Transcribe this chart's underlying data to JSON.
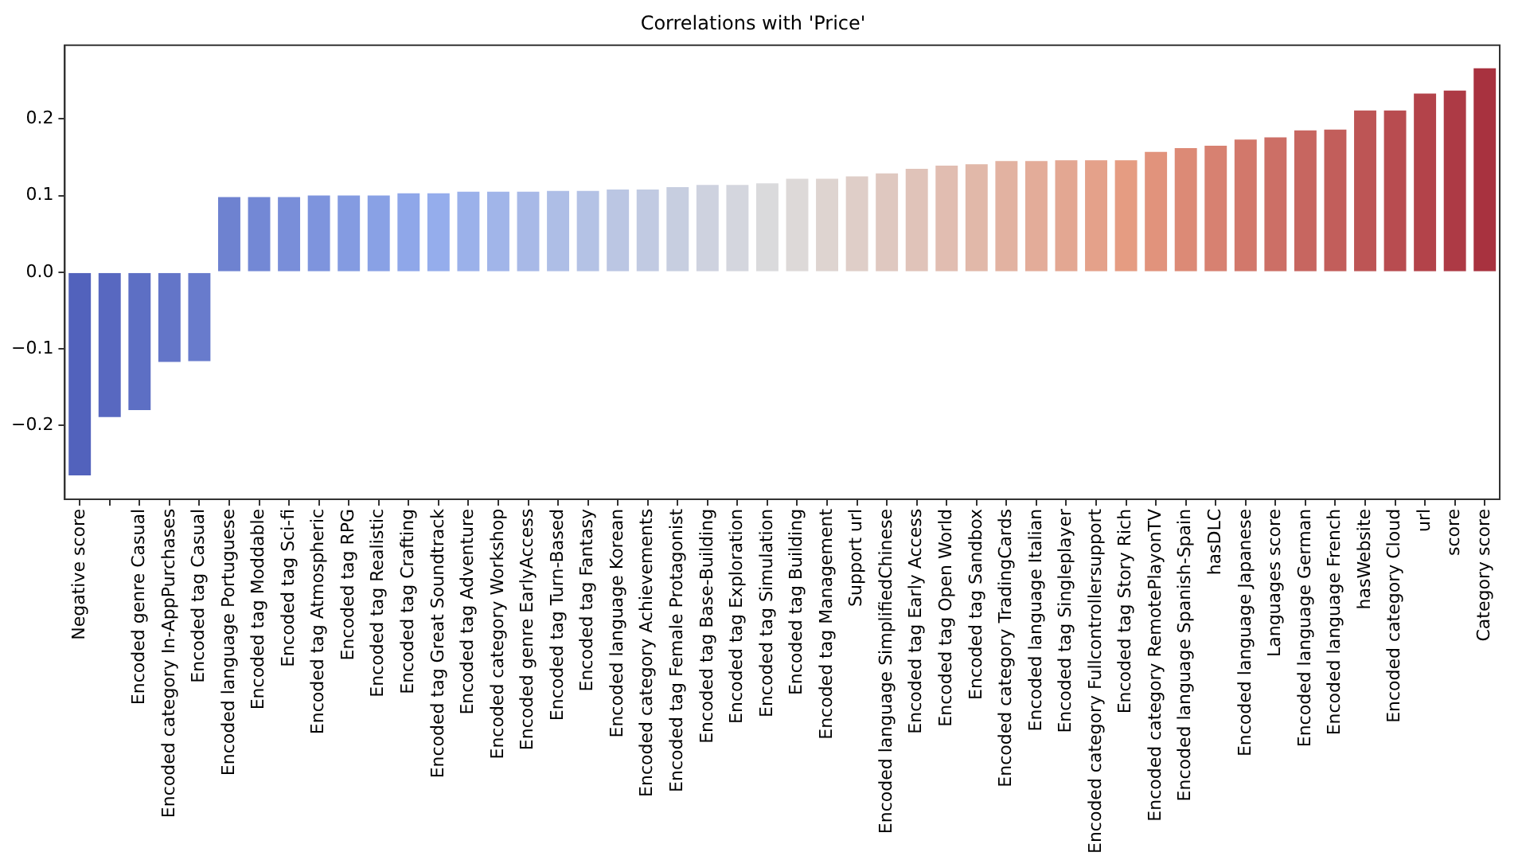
{
  "chart_data": {
    "type": "bar",
    "title": "Correlations with 'Price'",
    "categories": [
      "Negative score",
      null,
      "Encoded genre Casual",
      "Encoded category In-AppPurchases",
      "Encoded tag Casual",
      "Encoded language Portuguese",
      "Encoded tag Moddable",
      "Encoded tag Sci-fi",
      "Encoded tag Atmospheric",
      "Encoded tag RPG",
      "Encoded tag Realistic",
      "Encoded tag Crafting",
      "Encoded tag Great Soundtrack",
      "Encoded tag Adventure",
      "Encoded category Workshop",
      "Encoded genre EarlyAccess",
      "Encoded tag Turn-Based",
      "Encoded tag Fantasy",
      "Encoded language Korean",
      "Encoded category Achievements",
      "Encoded tag Female Protagonist",
      "Encoded tag Base-Building",
      "Encoded tag Exploration",
      "Encoded tag Simulation",
      "Encoded tag Building",
      "Encoded tag Management",
      "Support url",
      "Encoded language SimplifiedChinese",
      "Encoded tag Early Access",
      "Encoded tag Open World",
      "Encoded tag Sandbox",
      "Encoded category TradingCards",
      "Encoded language Italian",
      "Encoded tag Singleplayer",
      "Encoded category Fullcontrollersupport",
      "Encoded tag Story Rich",
      "Encoded category RemotePlayonTV",
      "Encoded language Spanish-Spain",
      "hasDLC",
      "Encoded language Japanese",
      "Languages score",
      "Encoded language German",
      "Encoded language French",
      "hasWebsite",
      "Encoded category Cloud",
      "url",
      "score",
      "Category score"
    ],
    "values": [
      -0.267,
      -0.191,
      -0.182,
      -0.119,
      -0.118,
      0.1,
      0.1,
      0.1,
      0.102,
      0.102,
      0.102,
      0.105,
      0.105,
      0.107,
      0.107,
      0.107,
      0.108,
      0.108,
      0.11,
      0.11,
      0.113,
      0.116,
      0.116,
      0.118,
      0.124,
      0.124,
      0.127,
      0.131,
      0.137,
      0.141,
      0.143,
      0.147,
      0.147,
      0.148,
      0.148,
      0.148,
      0.159,
      0.164,
      0.167,
      0.175,
      0.178,
      0.187,
      0.188,
      0.213,
      0.213,
      0.235,
      0.239,
      0.268
    ],
    "colors": [
      "#5262bc",
      "#5868c0",
      "#5d6fc4",
      "#6375c8",
      "#687bcc",
      "#6e82d0",
      "#7388d5",
      "#798ed9",
      "#7e94dd",
      "#849be1",
      "#89a1e5",
      "#8fa7e9",
      "#95adec",
      "#9bb1ea",
      "#a1b5e9",
      "#a8b9e7",
      "#aebee6",
      "#b4c2e5",
      "#bbc6e3",
      "#c1cae2",
      "#c7cee0",
      "#ced2df",
      "#d4d6de",
      "#dadadc",
      "#ddd9d8",
      "#ded4d0",
      "#dfcec8",
      "#dfc8c0",
      "#e0c3b9",
      "#e1bdb1",
      "#e1b8a9",
      "#e2b2a1",
      "#e3ac99",
      "#e3a792",
      "#e4a18a",
      "#e59c82",
      "#e1937c",
      "#dc8a76",
      "#d78171",
      "#d2786b",
      "#cc6f66",
      "#c76660",
      "#c25e5b",
      "#bd5555",
      "#b84c50",
      "#b3434a",
      "#ad3a45",
      "#a8323f"
    ],
    "ylim": [
      -0.296,
      0.296
    ],
    "yticks": [
      {
        "value": -0.2,
        "label": "−0.2"
      },
      {
        "value": -0.1,
        "label": "−0.1"
      },
      {
        "value": 0,
        "label": "0.0"
      },
      {
        "value": 0.1,
        "label": "0.1"
      },
      {
        "value": 0.2,
        "label": "0.2"
      }
    ],
    "grid": false,
    "legend": false
  }
}
